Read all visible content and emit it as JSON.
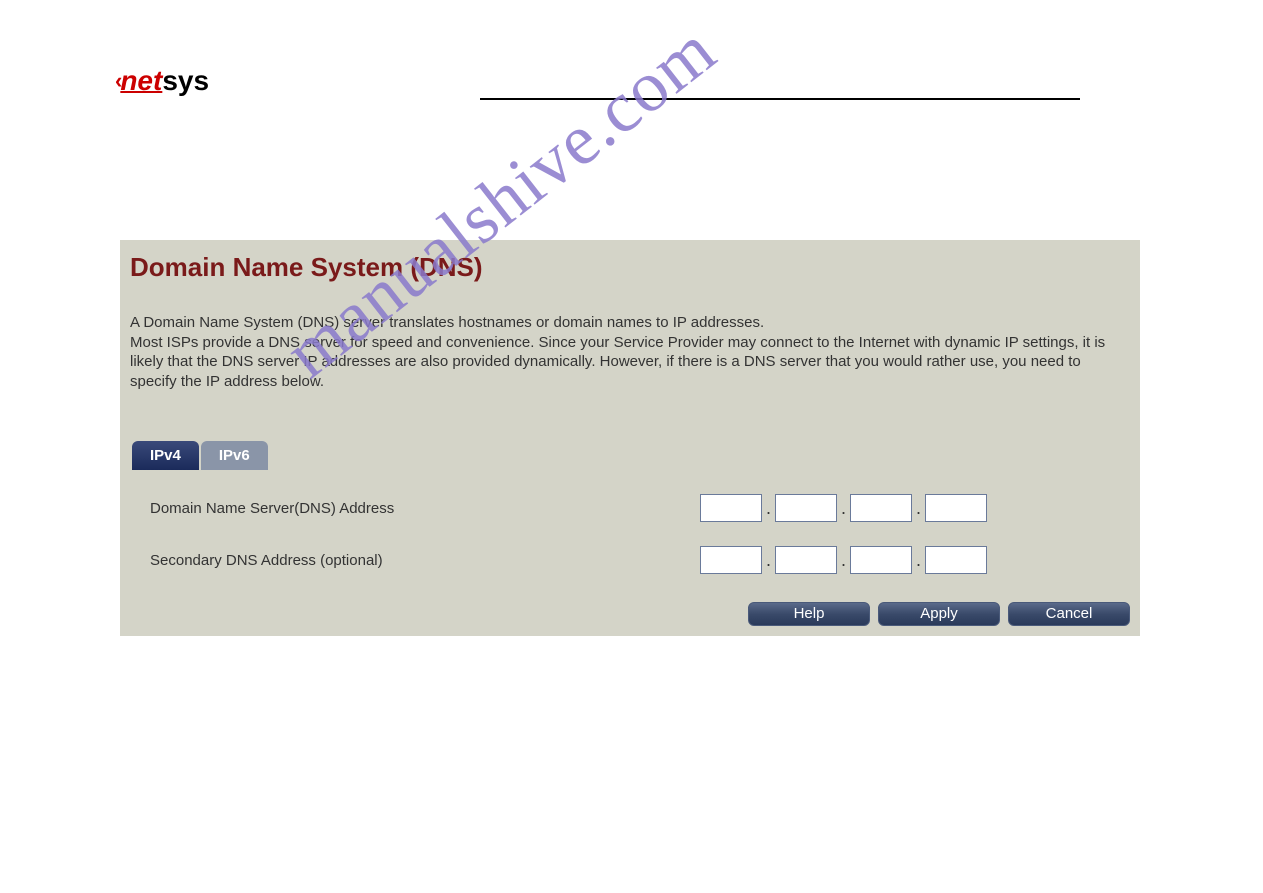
{
  "logo": {
    "arc": "‹",
    "part1": "net",
    "part2": "sys"
  },
  "panel": {
    "title": "Domain Name System (DNS)",
    "description": "A Domain Name System (DNS) server translates hostnames or domain names to IP addresses.\nMost ISPs provide a DNS server for speed and convenience. Since your Service Provider may connect to the Internet with dynamic IP settings, it is likely that the DNS server IP addresses are also provided dynamically. However, if there is a DNS server that you would rather use, you need to specify the IP address below."
  },
  "tabs": {
    "ipv4": "IPv4",
    "ipv6": "IPv6"
  },
  "form": {
    "primary_label": "Domain Name Server(DNS) Address",
    "secondary_label": "Secondary DNS Address (optional)"
  },
  "buttons": {
    "help": "Help",
    "apply": "Apply",
    "cancel": "Cancel"
  },
  "watermark": "manualshive.com",
  "colors": {
    "panel_bg": "#d4d4c8",
    "title_color": "#7a1a1a",
    "tab_active_bg": "#1a2a5a",
    "tab_inactive_bg": "#8a95a8",
    "btn_bg": "#3a4a6a",
    "watermark_color": "#8a7acc"
  }
}
